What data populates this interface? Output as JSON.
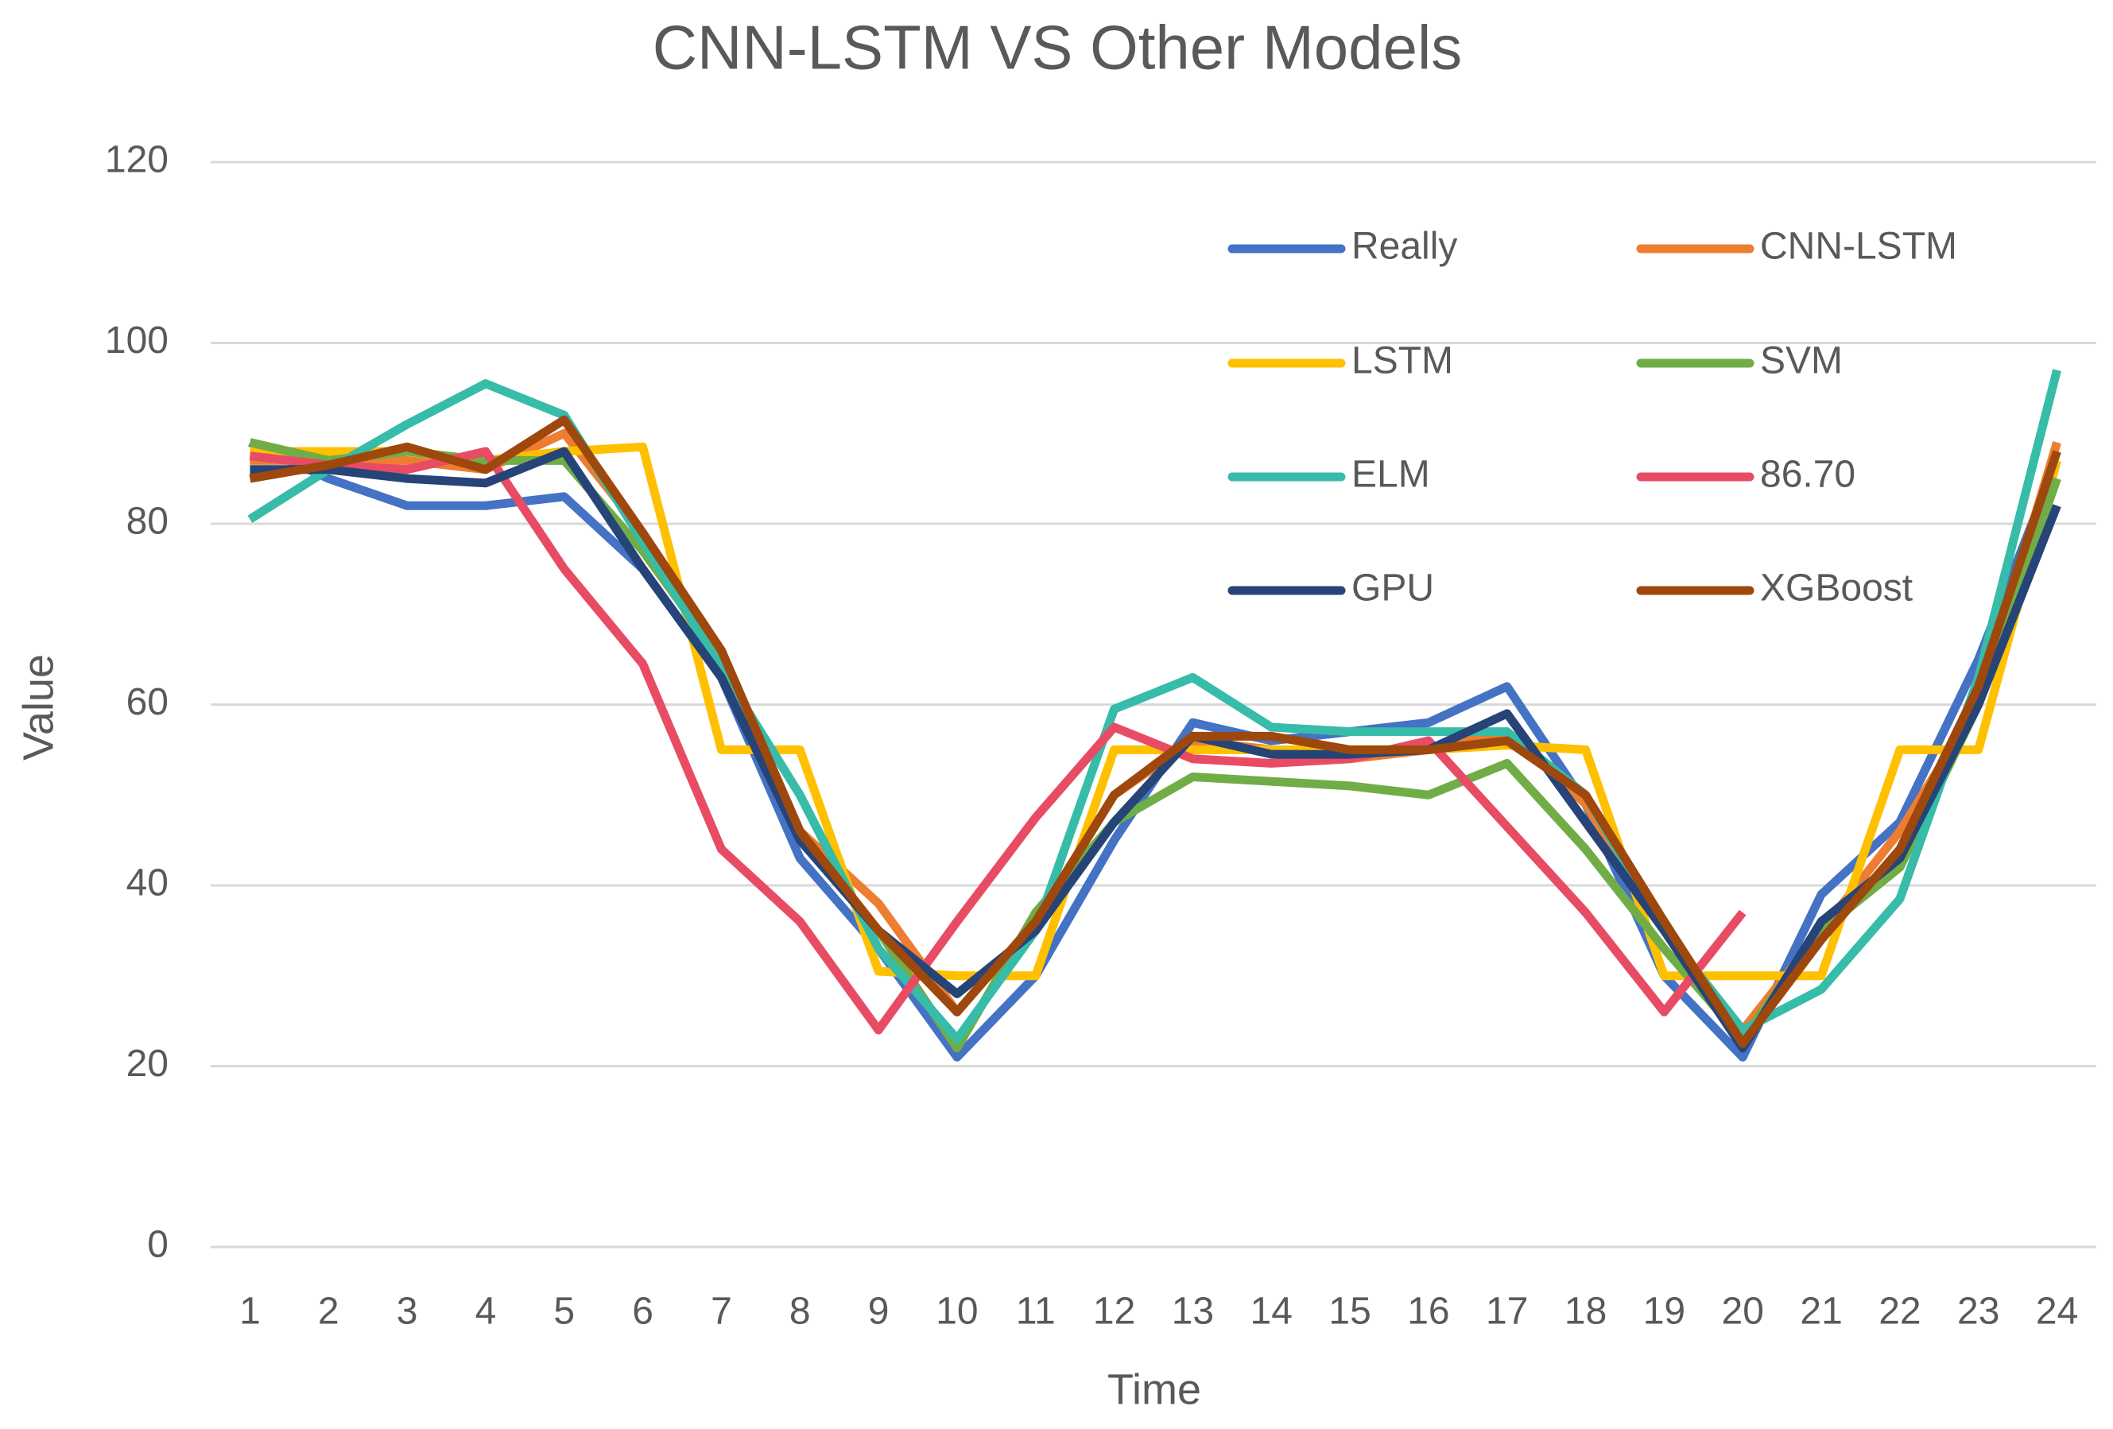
{
  "chart_data": {
    "type": "line",
    "title": "CNN-LSTM VS Other Models",
    "x_label": "Time",
    "y_label": "Value",
    "categories": [
      "1",
      "2",
      "3",
      "4",
      "5",
      "6",
      "7",
      "8",
      "9",
      "10",
      "11",
      "12",
      "13",
      "14",
      "15",
      "16",
      "17",
      "18",
      "19",
      "20",
      "21",
      "22",
      "23",
      "24"
    ],
    "series": [
      {
        "name": "Really",
        "color": "#4472c4",
        "values": [
          89,
          85,
          82,
          82,
          83,
          75,
          63,
          43,
          33,
          21,
          30,
          45,
          58,
          56,
          57,
          58,
          62,
          49,
          30,
          21,
          39,
          47,
          65,
          87
        ]
      },
      {
        "name": "CNN-LSTM",
        "color": "#ed7d31",
        "values": [
          87,
          87,
          87,
          86,
          90,
          79,
          65,
          46,
          38,
          26,
          36,
          50,
          56,
          55,
          54,
          55,
          57,
          49,
          35,
          24,
          35,
          46,
          60,
          89
        ]
      },
      {
        "name": "LSTM",
        "color": "#ffc000",
        "values": [
          88,
          88,
          88,
          87,
          88,
          88.5,
          55,
          55,
          30.5,
          30,
          30,
          55,
          55,
          55,
          55,
          55,
          55.5,
          55,
          30,
          30,
          30,
          55,
          55,
          87
        ]
      },
      {
        "name": "SVM",
        "color": "#70ad47",
        "values": [
          89,
          87,
          88,
          87,
          87,
          77,
          65,
          45,
          35,
          22,
          37,
          47,
          52,
          51.5,
          51,
          50,
          53.5,
          44,
          33,
          23,
          35,
          42,
          60,
          85
        ]
      },
      {
        "name": "ELM",
        "color": "#36bca8",
        "values": [
          80.5,
          86,
          91,
          95.5,
          92,
          78,
          64,
          50,
          33,
          23,
          35,
          59.5,
          63,
          57.5,
          57,
          57,
          57,
          50,
          35,
          24,
          28.5,
          38.5,
          63,
          97
        ]
      },
      {
        "name": "86.70",
        "color": "#e84c64",
        "values": [
          87.5,
          86.5,
          86,
          88,
          75,
          64.5,
          44,
          36,
          24,
          36,
          47.5,
          57.5,
          54,
          53.5,
          54,
          56,
          46.5,
          37,
          26,
          37,
          null,
          null,
          null,
          null
        ]
      },
      {
        "name": "GPU",
        "color": "#264478",
        "values": [
          86,
          86,
          85,
          84.5,
          88,
          75,
          63,
          45,
          35,
          28,
          35,
          47,
          56.5,
          54.5,
          54.5,
          55,
          59,
          47,
          35,
          22,
          36,
          43,
          60,
          82
        ]
      },
      {
        "name": "XGBoost",
        "color": "#9e480e",
        "values": [
          85,
          86.5,
          88.5,
          86,
          91.5,
          79,
          66,
          46,
          35,
          26,
          36,
          50,
          56.5,
          56.5,
          55,
          55,
          56,
          50,
          36,
          22.5,
          34,
          44,
          62,
          88
        ]
      }
    ],
    "ylim": [
      0,
      120
    ],
    "yticks": [
      0,
      20,
      40,
      60,
      80,
      100,
      120
    ],
    "grid": true,
    "legend": "top-right"
  }
}
